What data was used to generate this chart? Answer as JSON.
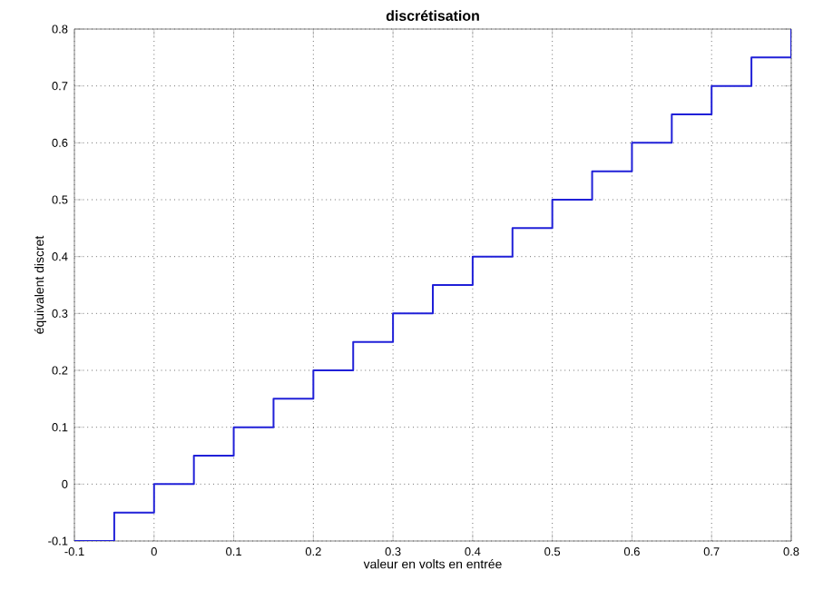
{
  "chart_data": {
    "type": "step",
    "title": "discrétisation",
    "xlabel": "valeur en volts en entrée",
    "ylabel": "équivalent discret",
    "x": [
      -0.1,
      -0.05,
      0,
      0.05,
      0.1,
      0.15,
      0.2,
      0.25,
      0.3,
      0.35,
      0.4,
      0.45,
      0.5,
      0.55,
      0.6,
      0.65,
      0.7,
      0.75,
      0.8
    ],
    "values": [
      -0.1,
      -0.05,
      0,
      0.05,
      0.1,
      0.15,
      0.2,
      0.25,
      0.3,
      0.35,
      0.4,
      0.45,
      0.5,
      0.55,
      0.6,
      0.65,
      0.7,
      0.75,
      0.8
    ],
    "color": "#2020d8",
    "xlim": [
      -0.1,
      0.8
    ],
    "ylim": [
      -0.1,
      0.8
    ],
    "xticks": [
      -0.1,
      0,
      0.1,
      0.2,
      0.3,
      0.4,
      0.5,
      0.6,
      0.7,
      0.8
    ],
    "yticks": [
      -0.1,
      0,
      0.1,
      0.2,
      0.3,
      0.4,
      0.5,
      0.6,
      0.7,
      0.8
    ],
    "grid": true
  }
}
